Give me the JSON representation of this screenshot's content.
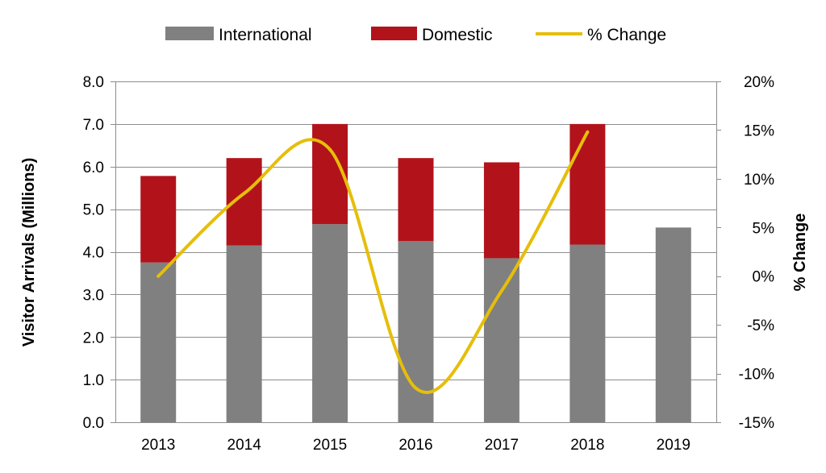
{
  "chart_data": {
    "type": "bar",
    "stacked": true,
    "categories": [
      "2013",
      "2014",
      "2015",
      "2016",
      "2017",
      "2018",
      "2019"
    ],
    "series": [
      {
        "name": "International",
        "kind": "bar",
        "axis": "left",
        "color": "#808080",
        "values": [
          3.75,
          4.15,
          4.65,
          4.25,
          3.85,
          4.17,
          4.57
        ]
      },
      {
        "name": "Domestic",
        "kind": "bar",
        "axis": "left",
        "color": "#B2131B",
        "values": [
          2.03,
          2.05,
          2.35,
          1.95,
          2.25,
          2.83,
          null
        ]
      },
      {
        "name": "% Change",
        "kind": "line",
        "axis": "right",
        "color": "#E6BE0A",
        "values": [
          0.0,
          8.5,
          13.0,
          -11.5,
          -1.5,
          14.8,
          null
        ]
      }
    ],
    "y_left": {
      "label": "Visitor Arrivals (Millions)",
      "range": [
        0,
        8
      ],
      "ticks": [
        "0.0",
        "1.0",
        "2.0",
        "3.0",
        "4.0",
        "5.0",
        "6.0",
        "7.0",
        "8.0"
      ]
    },
    "y_right": {
      "label": "% Change",
      "range": [
        -15,
        20
      ],
      "ticks": [
        "-15%",
        "-10%",
        "-5%",
        "0%",
        "5%",
        "10%",
        "15%",
        "20%"
      ]
    },
    "grid": true,
    "legend": [
      "International",
      "Domestic",
      "% Change"
    ],
    "legend_position": "top-center"
  }
}
